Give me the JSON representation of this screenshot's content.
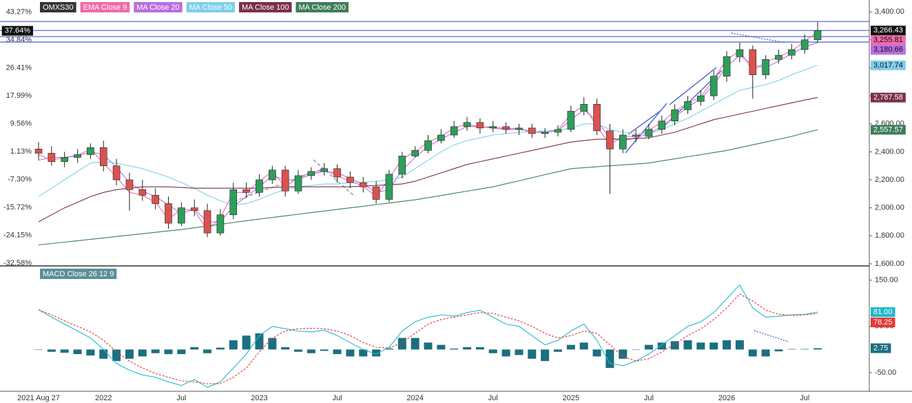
{
  "chart_data": [
    {
      "type": "candlestick",
      "name": "OMXS30",
      "categories": [
        "2021 Aug 27",
        null,
        null,
        null,
        null,
        "2022",
        null,
        null,
        null,
        null,
        null,
        "Jul",
        null,
        null,
        null,
        null,
        null,
        "2023",
        null,
        null,
        null,
        null,
        null,
        "Jul",
        null,
        null,
        null,
        null,
        null,
        "2024",
        null,
        null,
        null,
        null,
        null,
        "Jul",
        null,
        null,
        null,
        null,
        null,
        "2025",
        null,
        null,
        null,
        null,
        null,
        "Jul",
        null,
        null,
        null,
        null,
        null,
        "2026",
        null,
        null,
        null,
        null,
        null,
        "Jul",
        null
      ],
      "open": [
        2420,
        2390,
        2330,
        2360,
        2380,
        2430,
        2300,
        2200,
        2130,
        2090,
        2030,
        1890,
        2000,
        1980,
        1820,
        1950,
        2130,
        2110,
        2200,
        2270,
        2120,
        2230,
        2260,
        2280,
        2220,
        2180,
        2150,
        2060,
        2240,
        2370,
        2410,
        2480,
        2520,
        2580,
        2610,
        2570,
        2580,
        2560,
        2570,
        2530,
        2540,
        2560,
        2690,
        2740,
        2550,
        2420,
        2520,
        2510,
        2560,
        2620,
        2700,
        2760,
        2800,
        2940,
        3080,
        3130,
        2950,
        3060,
        3090,
        3130,
        3200
      ],
      "high": [
        2470,
        2440,
        2400,
        2420,
        2460,
        2480,
        2350,
        2250,
        2200,
        2140,
        2080,
        2040,
        2060,
        2030,
        1990,
        2180,
        2180,
        2240,
        2300,
        2300,
        2270,
        2290,
        2320,
        2310,
        2260,
        2220,
        2190,
        2270,
        2400,
        2440,
        2520,
        2560,
        2620,
        2650,
        2640,
        2620,
        2610,
        2600,
        2600,
        2570,
        2590,
        2730,
        2790,
        2780,
        2600,
        2560,
        2560,
        2600,
        2660,
        2740,
        2800,
        2840,
        2980,
        3120,
        3180,
        3160,
        3090,
        3130,
        3170,
        3240,
        3330
      ],
      "low": [
        2340,
        2300,
        2290,
        2320,
        2350,
        2260,
        2160,
        1980,
        2050,
        1990,
        1850,
        1870,
        1940,
        1790,
        1800,
        1920,
        2070,
        2080,
        2170,
        2080,
        2100,
        2200,
        2230,
        2180,
        2140,
        2110,
        2030,
        2040,
        2210,
        2360,
        2390,
        2460,
        2500,
        2550,
        2530,
        2540,
        2530,
        2520,
        2500,
        2500,
        2510,
        2540,
        2660,
        2520,
        2100,
        2390,
        2470,
        2490,
        2530,
        2590,
        2670,
        2730,
        2770,
        2900,
        3040,
        2780,
        2920,
        3030,
        3060,
        3100,
        3180
      ],
      "close": [
        2390,
        2330,
        2360,
        2380,
        2430,
        2300,
        2200,
        2130,
        2090,
        2030,
        1890,
        2000,
        1980,
        1820,
        1950,
        2130,
        2110,
        2200,
        2270,
        2120,
        2230,
        2260,
        2280,
        2220,
        2180,
        2150,
        2060,
        2240,
        2370,
        2410,
        2480,
        2520,
        2580,
        2610,
        2570,
        2580,
        2560,
        2570,
        2530,
        2540,
        2560,
        2690,
        2740,
        2550,
        2420,
        2520,
        2510,
        2560,
        2620,
        2700,
        2760,
        2800,
        2940,
        3080,
        3130,
        2950,
        3060,
        3090,
        3130,
        3200,
        3266.43
      ],
      "close_label": "3,266.43",
      "up_color": "#2e9e5b",
      "down_color": "#d9534f",
      "change_pct": 37.64,
      "change_pct_label": "37.64%",
      "series": [
        {
          "name": "EMA  Close 9",
          "color": "#f06aa8",
          "value_label": "3,255.81",
          "values": [
            2380,
            2340,
            2360,
            2375,
            2420,
            2320,
            2220,
            2110,
            2090,
            2040,
            1920,
            1990,
            1980,
            1840,
            1930,
            2110,
            2110,
            2190,
            2260,
            2150,
            2220,
            2250,
            2270,
            2230,
            2190,
            2155,
            2080,
            2210,
            2350,
            2400,
            2470,
            2510,
            2570,
            2600,
            2575,
            2580,
            2565,
            2570,
            2535,
            2540,
            2555,
            2670,
            2730,
            2580,
            2450,
            2510,
            2510,
            2555,
            2610,
            2690,
            2750,
            2790,
            2920,
            3060,
            3120,
            2980,
            3040,
            3080,
            3120,
            3190,
            3255.81
          ]
        },
        {
          "name": "MA  Close 20",
          "color": "#b86ee0",
          "value_label": "3,180.66",
          "values": [
            2340,
            2360,
            2360,
            2370,
            2400,
            2380,
            2290,
            2180,
            2120,
            2080,
            2020,
            1960,
            1990,
            1900,
            1900,
            2010,
            2080,
            2150,
            2230,
            2200,
            2200,
            2240,
            2260,
            2250,
            2210,
            2170,
            2110,
            2130,
            2270,
            2360,
            2440,
            2490,
            2540,
            2580,
            2580,
            2570,
            2560,
            2560,
            2550,
            2540,
            2550,
            2630,
            2700,
            2620,
            2500,
            2480,
            2500,
            2530,
            2580,
            2650,
            2720,
            2780,
            2880,
            3010,
            3090,
            3020,
            3000,
            3050,
            3100,
            3150,
            3180.66
          ]
        },
        {
          "name": "MA  Close 50",
          "color": "#7ecfea",
          "value_label": "3,017.74",
          "values": [
            2080,
            2140,
            2200,
            2260,
            2320,
            2330,
            2320,
            2300,
            2280,
            2250,
            2220,
            2180,
            2140,
            2090,
            2050,
            2020,
            2030,
            2060,
            2100,
            2130,
            2150,
            2160,
            2170,
            2170,
            2180,
            2180,
            2190,
            2200,
            2220,
            2280,
            2340,
            2400,
            2450,
            2480,
            2500,
            2520,
            2530,
            2540,
            2545,
            2550,
            2555,
            2570,
            2600,
            2600,
            2560,
            2540,
            2530,
            2530,
            2560,
            2600,
            2640,
            2690,
            2740,
            2790,
            2840,
            2860,
            2880,
            2910,
            2950,
            2985,
            3017.74
          ]
        },
        {
          "name": "MA  Close 100",
          "color": "#7a2f4a",
          "value_label": "2,787.58",
          "values": [
            1900,
            1950,
            2000,
            2040,
            2080,
            2110,
            2130,
            2140,
            2150,
            2150,
            2150,
            2145,
            2140,
            2140,
            2140,
            2140,
            2140,
            2140,
            2145,
            2150,
            2150,
            2150,
            2150,
            2150,
            2150,
            2155,
            2160,
            2165,
            2170,
            2190,
            2220,
            2250,
            2280,
            2310,
            2330,
            2350,
            2370,
            2390,
            2410,
            2430,
            2450,
            2470,
            2480,
            2490,
            2490,
            2490,
            2495,
            2500,
            2520,
            2540,
            2570,
            2600,
            2630,
            2650,
            2670,
            2690,
            2710,
            2730,
            2750,
            2770,
            2787.58
          ]
        },
        {
          "name": "MA  Close 200",
          "color": "#3e7d5a",
          "value_label": "2,557.57",
          "values": [
            1735,
            1745,
            1755,
            1765,
            1775,
            1785,
            1795,
            1805,
            1815,
            1825,
            1835,
            1845,
            1857,
            1870,
            1882,
            1895,
            1908,
            1920,
            1931,
            1943,
            1954,
            1966,
            1977,
            1989,
            2000,
            2011,
            2023,
            2034,
            2046,
            2057,
            2073,
            2088,
            2104,
            2119,
            2135,
            2150,
            2172,
            2193,
            2215,
            2237,
            2258,
            2280,
            2287,
            2293,
            2300,
            2307,
            2313,
            2320,
            2335,
            2350,
            2365,
            2380,
            2395,
            2410,
            2430,
            2450,
            2470,
            2490,
            2510,
            2535,
            2557.57
          ]
        }
      ],
      "horizontal_lines": [
        3331,
        3267,
        3223,
        3184
      ],
      "line_color": "#5b6bd8",
      "ylim": [
        1590,
        3460
      ],
      "yticks": [
        {
          "value": 1600,
          "label": "1,600.00"
        },
        {
          "value": 1800,
          "label": "1,800.00"
        },
        {
          "value": 2000,
          "label": "2,000.00"
        },
        {
          "value": 2200,
          "label": "2,200.00"
        },
        {
          "value": 2400,
          "label": "2,400.00"
        },
        {
          "value": 2600,
          "label": "2,600.00"
        },
        {
          "value": 2800,
          "label": "2,800.00"
        },
        {
          "value": 3000,
          "label": "3,000.00"
        },
        {
          "value": 3200,
          "label": "3,200.00"
        },
        {
          "value": 3400,
          "label": "3,400.00"
        }
      ],
      "y2lim": [
        -33.2,
        45.9
      ],
      "y2ticks": [
        {
          "value": -32.58,
          "label": "-32.58%"
        },
        {
          "value": -24.15,
          "label": "-24.15%"
        },
        {
          "value": -15.72,
          "label": "-15.72%"
        },
        {
          "value": -7.3,
          "label": "-7.30%"
        },
        {
          "value": 1.13,
          "label": "1.13%"
        },
        {
          "value": 9.56,
          "label": "9.56%"
        },
        {
          "value": 17.99,
          "label": "17.99%"
        },
        {
          "value": 26.41,
          "label": "26.41%"
        },
        {
          "value": 34.84,
          "label": "34.84%"
        },
        {
          "value": 43.27,
          "label": "43.27%"
        }
      ]
    },
    {
      "type": "macd",
      "title": "MACD  Close 26 12 9",
      "series": [
        {
          "name": "MACD",
          "color": "#22b8cf",
          "value_label": "81.00",
          "values": [
            86,
            70,
            55,
            40,
            25,
            0,
            -30,
            -45,
            -55,
            -60,
            -70,
            -78,
            -65,
            -82,
            -70,
            -40,
            -10,
            30,
            50,
            45,
            40,
            38,
            42,
            30,
            15,
            0,
            -10,
            5,
            40,
            60,
            70,
            75,
            72,
            80,
            85,
            70,
            55,
            50,
            30,
            10,
            20,
            40,
            55,
            20,
            -30,
            -35,
            -25,
            -10,
            10,
            30,
            50,
            60,
            80,
            110,
            140,
            90,
            70,
            72,
            75,
            76,
            81
          ]
        },
        {
          "name": "Signal",
          "color": "#e53935",
          "value_label": "78.25",
          "values": [
            86,
            75,
            62,
            50,
            38,
            20,
            -5,
            -25,
            -40,
            -52,
            -60,
            -68,
            -70,
            -74,
            -74,
            -60,
            -40,
            -5,
            25,
            40,
            45,
            46,
            45,
            40,
            30,
            15,
            5,
            3,
            15,
            35,
            55,
            65,
            70,
            75,
            80,
            78,
            70,
            62,
            50,
            35,
            25,
            30,
            40,
            35,
            10,
            -15,
            -25,
            -20,
            -5,
            12,
            30,
            45,
            65,
            90,
            120,
            105,
            85,
            76,
            74,
            75,
            78.25
          ]
        }
      ],
      "histogram": {
        "color": "#1b6f80",
        "value_label": "2.75",
        "values": [
          0,
          -5,
          -7,
          -10,
          -13,
          -20,
          -25,
          -20,
          -15,
          -8,
          -10,
          -10,
          5,
          -8,
          4,
          20,
          30,
          35,
          25,
          5,
          -5,
          -8,
          -3,
          -10,
          -15,
          -15,
          -15,
          2,
          25,
          25,
          15,
          10,
          2,
          5,
          5,
          -8,
          -15,
          -12,
          -20,
          -25,
          -5,
          10,
          15,
          -15,
          -40,
          -20,
          0,
          10,
          15,
          18,
          20,
          15,
          15,
          20,
          20,
          -15,
          -15,
          -4,
          1,
          1,
          2.75
        ]
      },
      "ylim": [
        -86,
        175
      ],
      "yticks": [
        {
          "value": -50,
          "label": "-50.00"
        },
        {
          "value": 50,
          "label": "50.00"
        },
        {
          "value": 150,
          "label": "150.00"
        }
      ]
    }
  ]
}
